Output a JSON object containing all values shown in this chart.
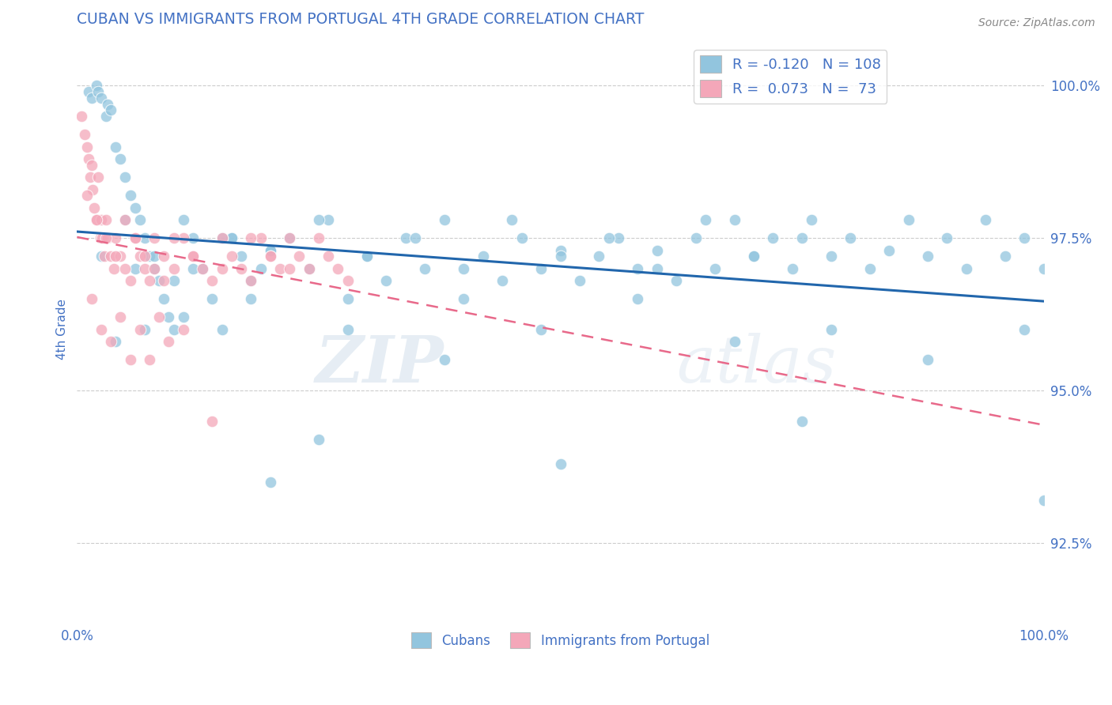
{
  "title": "CUBAN VS IMMIGRANTS FROM PORTUGAL 4TH GRADE CORRELATION CHART",
  "source_text": "Source: ZipAtlas.com",
  "ylabel": "4th Grade",
  "xmin": 0.0,
  "xmax": 100.0,
  "ymin": 91.2,
  "ymax": 100.8,
  "yticks": [
    92.5,
    95.0,
    97.5,
    100.0
  ],
  "ytick_labels": [
    "92.5%",
    "95.0%",
    "97.5%",
    "100.0%"
  ],
  "xtick_labels": [
    "0.0%",
    "100.0%"
  ],
  "xtick_positions": [
    0.0,
    100.0
  ],
  "legend_R1": "R = -0.120",
  "legend_N1": "N = 108",
  "legend_R2": "R =  0.073",
  "legend_N2": "N =  73",
  "blue_color": "#92C5DE",
  "pink_color": "#F4A7B9",
  "title_color": "#4472C4",
  "axis_color": "#4472C4",
  "tick_color": "#4472C4",
  "watermark_line1": "ZIP",
  "watermark_line2": "atlas",
  "background_color": "#FFFFFF",
  "blue_line_color": "#2166AC",
  "pink_line_color": "#E8698A",
  "grid_color": "#CCCCCC",
  "blue_x": [
    1.2,
    1.5,
    2.0,
    2.2,
    2.5,
    3.0,
    3.2,
    3.5,
    4.0,
    4.5,
    5.0,
    5.5,
    6.0,
    6.5,
    7.0,
    7.5,
    8.0,
    8.5,
    9.0,
    9.5,
    10.0,
    11.0,
    12.0,
    13.0,
    14.0,
    15.0,
    16.0,
    17.0,
    18.0,
    19.0,
    20.0,
    22.0,
    24.0,
    26.0,
    28.0,
    30.0,
    32.0,
    34.0,
    36.0,
    38.0,
    40.0,
    42.0,
    44.0,
    46.0,
    48.0,
    50.0,
    52.0,
    54.0,
    56.0,
    58.0,
    60.0,
    62.0,
    64.0,
    66.0,
    68.0,
    70.0,
    72.0,
    74.0,
    76.0,
    78.0,
    80.0,
    82.0,
    84.0,
    86.0,
    88.0,
    90.0,
    92.0,
    94.0,
    96.0,
    98.0,
    100.0,
    5.0,
    8.0,
    12.0,
    16.0,
    20.0,
    25.0,
    30.0,
    35.0,
    40.0,
    45.0,
    50.0,
    55.0,
    60.0,
    65.0,
    70.0,
    75.0,
    4.0,
    7.0,
    11.0,
    18.0,
    28.0,
    38.0,
    48.0,
    58.0,
    68.0,
    78.0,
    88.0,
    98.0,
    2.5,
    6.0,
    10.0,
    15.0,
    20.0,
    25.0,
    50.0,
    75.0,
    100.0
  ],
  "blue_y": [
    99.9,
    99.8,
    100.0,
    99.9,
    99.8,
    99.5,
    99.7,
    99.6,
    99.0,
    98.8,
    98.5,
    98.2,
    98.0,
    97.8,
    97.5,
    97.2,
    97.0,
    96.8,
    96.5,
    96.2,
    96.0,
    97.8,
    97.5,
    97.0,
    96.5,
    96.0,
    97.5,
    97.2,
    96.8,
    97.0,
    97.3,
    97.5,
    97.0,
    97.8,
    96.5,
    97.2,
    96.8,
    97.5,
    97.0,
    97.8,
    96.5,
    97.2,
    96.8,
    97.5,
    97.0,
    97.3,
    96.8,
    97.2,
    97.5,
    97.0,
    97.3,
    96.8,
    97.5,
    97.0,
    97.8,
    97.2,
    97.5,
    97.0,
    97.8,
    97.2,
    97.5,
    97.0,
    97.3,
    97.8,
    97.2,
    97.5,
    97.0,
    97.8,
    97.2,
    97.5,
    97.0,
    97.8,
    97.2,
    97.0,
    97.5,
    97.3,
    97.8,
    97.2,
    97.5,
    97.0,
    97.8,
    97.2,
    97.5,
    97.0,
    97.8,
    97.2,
    97.5,
    95.8,
    96.0,
    96.2,
    96.5,
    96.0,
    95.5,
    96.0,
    96.5,
    95.8,
    96.0,
    95.5,
    96.0,
    97.2,
    97.0,
    96.8,
    97.5,
    93.5,
    94.2,
    93.8,
    94.5,
    93.2
  ],
  "pink_x": [
    0.5,
    0.8,
    1.0,
    1.2,
    1.4,
    1.5,
    1.6,
    1.8,
    2.0,
    2.2,
    2.4,
    2.5,
    2.6,
    2.8,
    3.0,
    3.2,
    3.5,
    3.8,
    4.0,
    4.5,
    5.0,
    5.5,
    6.0,
    6.5,
    7.0,
    7.5,
    8.0,
    9.0,
    10.0,
    11.0,
    12.0,
    13.0,
    14.0,
    15.0,
    16.0,
    17.0,
    18.0,
    19.0,
    20.0,
    21.0,
    22.0,
    23.0,
    24.0,
    25.0,
    26.0,
    27.0,
    28.0,
    1.0,
    2.0,
    3.0,
    4.0,
    5.0,
    6.0,
    7.0,
    8.0,
    9.0,
    10.0,
    12.0,
    15.0,
    18.0,
    20.0,
    22.0,
    1.5,
    2.5,
    3.5,
    4.5,
    5.5,
    6.5,
    7.5,
    8.5,
    9.5,
    11.0,
    14.0
  ],
  "pink_y": [
    99.5,
    99.2,
    99.0,
    98.8,
    98.5,
    98.7,
    98.3,
    98.0,
    97.8,
    98.5,
    97.5,
    97.8,
    97.5,
    97.2,
    97.8,
    97.5,
    97.2,
    97.0,
    97.5,
    97.2,
    97.0,
    96.8,
    97.5,
    97.2,
    97.0,
    96.8,
    97.5,
    97.2,
    97.0,
    97.5,
    97.2,
    97.0,
    96.8,
    97.5,
    97.2,
    97.0,
    96.8,
    97.5,
    97.2,
    97.0,
    97.5,
    97.2,
    97.0,
    97.5,
    97.2,
    97.0,
    96.8,
    98.2,
    97.8,
    97.5,
    97.2,
    97.8,
    97.5,
    97.2,
    97.0,
    96.8,
    97.5,
    97.2,
    97.0,
    97.5,
    97.2,
    97.0,
    96.5,
    96.0,
    95.8,
    96.2,
    95.5,
    96.0,
    95.5,
    96.2,
    95.8,
    96.0,
    94.5
  ]
}
